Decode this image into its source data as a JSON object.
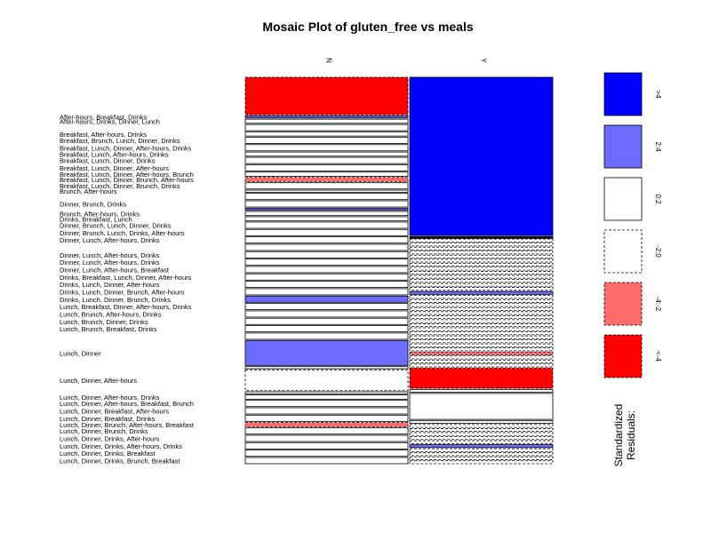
{
  "chart_data": {
    "type": "mosaic",
    "title": "Mosaic Plot of gluten_free vs meals",
    "column_variable": "gluten_free",
    "row_variable": "meals",
    "column_levels": [
      "N",
      "Y"
    ],
    "column_proportions": [
      0.532,
      0.468
    ],
    "rows": [
      {
        "label": "",
        "counts": [
          18,
          55
        ],
        "residual_class": [
          "lt-4",
          "gt4"
        ]
      },
      {
        "label": "After-hours, Breakfast, Drinks",
        "counts": [
          1,
          0
        ],
        "residual_class": [
          "2to4",
          "0to2"
        ]
      },
      {
        "label": "After-hours, Drinks, Dinner, Lunch",
        "counts": [
          2,
          0
        ],
        "residual_class": [
          "0to2",
          "0to2"
        ]
      },
      {
        "label": "",
        "counts": [
          3,
          1
        ],
        "residual_class": [
          "0to2",
          "-2to0"
        ]
      },
      {
        "label": "Breakfast, After-hours, Drinks",
        "counts": [
          2,
          1
        ],
        "residual_class": [
          "0to2",
          "-2to0"
        ]
      },
      {
        "label": "Breakfast, Brunch, Lunch, Dinner, Drinks",
        "counts": [
          3,
          1
        ],
        "residual_class": [
          "0to2",
          "-2to0"
        ]
      },
      {
        "label": "Breakfast, Lunch, Dinner, After-hours, Drinks",
        "counts": [
          3,
          1
        ],
        "residual_class": [
          "0to2",
          "-2to0"
        ]
      },
      {
        "label": "Breakfast, Lunch, After-hours, Drinks",
        "counts": [
          2,
          1
        ],
        "residual_class": [
          "0to2",
          "-2to0"
        ]
      },
      {
        "label": "Breakfast, Lunch, Dinner, Drinks",
        "counts": [
          3,
          1
        ],
        "residual_class": [
          "0to2",
          "-2to0"
        ]
      },
      {
        "label": "Breakfast, Lunch, Dinner, After-hours",
        "counts": [
          3,
          1
        ],
        "residual_class": [
          "0to2",
          "-2to0"
        ]
      },
      {
        "label": "Breakfast, Lunch, Dinner, After-hours, Brunch",
        "counts": [
          2,
          1
        ],
        "residual_class": [
          "0to2",
          "-2to0"
        ]
      },
      {
        "label": "Breakfast, Lunch, Dinner, Brunch, After-hours",
        "counts": [
          2,
          1
        ],
        "residual_class": [
          "-4to-2",
          "-2to0"
        ]
      },
      {
        "label": "Breakfast, Lunch, Dinner, Brunch, Drinks",
        "counts": [
          3,
          1
        ],
        "residual_class": [
          "0to2",
          "-2to0"
        ]
      },
      {
        "label": "Brunch, After-hours",
        "counts": [
          1,
          1
        ],
        "residual_class": [
          "0to2",
          "-2to0"
        ]
      },
      {
        "label": "",
        "counts": [
          3,
          1
        ],
        "residual_class": [
          "0to2",
          "-2to0"
        ]
      },
      {
        "label": "Dinner, Brunch, Drinks",
        "counts": [
          3,
          1
        ],
        "residual_class": [
          "0to2",
          "-2to0"
        ]
      },
      {
        "label": "",
        "counts": [
          1,
          1
        ],
        "residual_class": [
          "2to4",
          "2to4"
        ]
      },
      {
        "label": "Brunch, After-hours, Drinks",
        "counts": [
          2,
          1
        ],
        "residual_class": [
          "0to2",
          "-2to0"
        ]
      },
      {
        "label": "Drinks, Breakfast, Lunch",
        "counts": [
          2,
          1
        ],
        "residual_class": [
          "0to2",
          "-2to0"
        ]
      },
      {
        "label": "Dinner, Brunch, Lunch, Dinner, Drinks",
        "counts": [
          3,
          1
        ],
        "residual_class": [
          "0to2",
          "-2to0"
        ]
      },
      {
        "label": "Dinner, Brunch, Lunch, Drinks, After-hours",
        "counts": [
          3,
          1
        ],
        "residual_class": [
          "0to2",
          "-2to0"
        ]
      },
      {
        "label": "Dinner, Lunch, After-hours, Drinks",
        "counts": [
          3,
          1
        ],
        "residual_class": [
          "0to2",
          "-2to0"
        ]
      },
      {
        "label": "",
        "counts": [
          3,
          1
        ],
        "residual_class": [
          "0to2",
          "-2to0"
        ]
      },
      {
        "label": "Dinner, Lunch, After-hours, Drinks",
        "counts": [
          3,
          1
        ],
        "residual_class": [
          "0to2",
          "-2to0"
        ]
      },
      {
        "label": "Dinner, Lunch, After-hours, Drinks",
        "counts": [
          3,
          1
        ],
        "residual_class": [
          "0to2",
          "-2to0"
        ]
      },
      {
        "label": "Dinner, Lunch, After-hours, Breakfast",
        "counts": [
          3,
          1
        ],
        "residual_class": [
          "0to2",
          "-2to0"
        ]
      },
      {
        "label": "Drinks, Breakfast, Lunch, Dinner, After-hours",
        "counts": [
          3,
          1
        ],
        "residual_class": [
          "0to2",
          "-2to0"
        ]
      },
      {
        "label": "Drinks, Lunch, Dinner, After-hours",
        "counts": [
          3,
          1
        ],
        "residual_class": [
          "0to2",
          "-2to0"
        ]
      },
      {
        "label": "Drinks, Lunch, Dinner, Brunch, After-hours",
        "counts": [
          3,
          1
        ],
        "residual_class": [
          "0to2",
          "-2to0"
        ]
      },
      {
        "label": "Drinks, Lunch, Dinner, Brunch, Drinks",
        "counts": [
          3,
          1
        ],
        "residual_class": [
          "2to4",
          "-2to0"
        ]
      },
      {
        "label": "Lunch, Breakfast, Dinner, After-hours, Drinks",
        "counts": [
          3,
          1
        ],
        "residual_class": [
          "0to2",
          "-2to0"
        ]
      },
      {
        "label": "Lunch, Brunch, After-hours, Drinks",
        "counts": [
          3,
          1
        ],
        "residual_class": [
          "0to2",
          "-4to-2"
        ]
      },
      {
        "label": "Lunch, Brunch, Dinner, Drinks",
        "counts": [
          3,
          1
        ],
        "residual_class": [
          "0to2",
          "-2to0"
        ]
      },
      {
        "label": "Lunch, Brunch, Breakfast, Drinks",
        "counts": [
          3,
          1
        ],
        "residual_class": [
          "0to2",
          "-2to0"
        ]
      },
      {
        "label": "",
        "counts": [
          3,
          1
        ],
        "residual_class": [
          "0to2",
          "-2to0"
        ]
      },
      {
        "label": "Lunch, Dinner",
        "counts": [
          12,
          7
        ],
        "residual_class": [
          "2to4",
          "lt-4"
        ]
      },
      {
        "label": "",
        "counts": [
          1,
          1
        ],
        "residual_class": [
          "0to2",
          "0to2"
        ]
      },
      {
        "label": "Lunch, Dinner, After-hours",
        "counts": [
          10,
          9
        ],
        "residual_class": [
          "-2to0",
          "0to2"
        ]
      },
      {
        "label": "",
        "counts": [
          1,
          1
        ],
        "residual_class": [
          "0to2",
          "0to2"
        ]
      },
      {
        "label": "Lunch, Dinner, After-hours, Drinks",
        "counts": [
          2,
          1
        ],
        "residual_class": [
          "0to2",
          "-2to0"
        ]
      },
      {
        "label": "Lunch, Dinner, After-hours, Breakfast, Brunch",
        "counts": [
          3,
          1
        ],
        "residual_class": [
          "0to2",
          "-2to0"
        ]
      },
      {
        "label": "Lunch, Dinner, Breakfast, After-hours",
        "counts": [
          3,
          1
        ],
        "residual_class": [
          "0to2",
          "-2to0"
        ]
      },
      {
        "label": "Lunch, Dinner, Breakfast, Drinks",
        "counts": [
          3,
          1
        ],
        "residual_class": [
          "0to2",
          "-2to0"
        ]
      },
      {
        "label": "Lunch, Dinner, Brunch, After-hours, Breakfast",
        "counts": [
          2,
          1
        ],
        "residual_class": [
          "-4to-2",
          "-2to0"
        ]
      },
      {
        "label": "Lunch, Dinner, Brunch, Drinks",
        "counts": [
          3,
          1
        ],
        "residual_class": [
          "0to2",
          "2to4"
        ]
      },
      {
        "label": "Lunch, Dinner, Drinks, After-hours",
        "counts": [
          3,
          1
        ],
        "residual_class": [
          "0to2",
          "-2to0"
        ]
      },
      {
        "label": "Lunch, Dinner, Drinks, After-hours, Drinks",
        "counts": [
          3,
          1
        ],
        "residual_class": [
          "0to2",
          "-2to0"
        ]
      },
      {
        "label": "Lunch, Dinner, Drinks, Breakfast",
        "counts": [
          3,
          1
        ],
        "residual_class": [
          "0to2",
          "-2to0"
        ]
      },
      {
        "label": "Lunch, Dinner, Drinks, Brunch, Breakfast",
        "counts": [
          3,
          1
        ],
        "residual_class": [
          "0to2",
          "-2to0"
        ]
      }
    ],
    "legend": {
      "title": "Standardized Residuals:",
      "placement": "right",
      "items": [
        {
          "key": "gt4",
          "label": ">4",
          "color": "#0000ff",
          "dashed": false
        },
        {
          "key": "2to4",
          "label": "2:4",
          "color": "#6c6cff",
          "dashed": false
        },
        {
          "key": "0to2",
          "label": "0:2",
          "color": "#ffffff",
          "dashed": false
        },
        {
          "key": "-2to0",
          "label": "-2:0",
          "color": "#ffffff",
          "dashed": true
        },
        {
          "key": "-4to-2",
          "label": "-4:-2",
          "color": "#ff6c6c",
          "dashed": true
        },
        {
          "key": "lt-4",
          "label": "<-4",
          "color": "#ff0000",
          "dashed": true
        }
      ]
    }
  }
}
